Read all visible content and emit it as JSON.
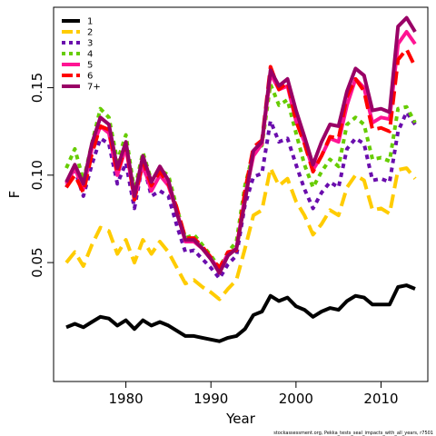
{
  "chart_data": {
    "type": "line",
    "xlabel": "Year",
    "ylabel": "F",
    "xlim": [
      1971.5,
      2015.5
    ],
    "ylim": [
      -0.018,
      0.196
    ],
    "x_ticks": [
      1980,
      1990,
      2000,
      2010
    ],
    "y_ticks": [
      0.05,
      0.1,
      0.15
    ],
    "y_tick_labels": [
      "0.05",
      "0.10",
      "0.15"
    ],
    "x": [
      1973,
      1974,
      1975,
      1976,
      1977,
      1978,
      1979,
      1980,
      1981,
      1982,
      1983,
      1984,
      1985,
      1986,
      1987,
      1988,
      1989,
      1990,
      1991,
      1992,
      1993,
      1994,
      1995,
      1996,
      1997,
      1998,
      1999,
      2000,
      2001,
      2002,
      2003,
      2004,
      2005,
      2006,
      2007,
      2008,
      2009,
      2010,
      2011,
      2012,
      2013,
      2014
    ],
    "legend_position": "top-left",
    "footnote": "stockassessment.org, Pekka_tests_seal_impacts_with_all_years, r7501",
    "series": [
      {
        "name": "1",
        "color": "#000000",
        "dash": "solid",
        "values": [
          0.013,
          0.015,
          0.013,
          0.016,
          0.019,
          0.018,
          0.014,
          0.017,
          0.012,
          0.017,
          0.014,
          0.016,
          0.014,
          0.011,
          0.008,
          0.008,
          0.007,
          0.006,
          0.005,
          0.007,
          0.008,
          0.012,
          0.02,
          0.022,
          0.031,
          0.028,
          0.03,
          0.025,
          0.023,
          0.019,
          0.022,
          0.024,
          0.023,
          0.028,
          0.031,
          0.03,
          0.026,
          0.026,
          0.026,
          0.036,
          0.037,
          0.035
        ]
      },
      {
        "name": "2",
        "color": "#FFCC00",
        "dash": "long",
        "values": [
          0.05,
          0.056,
          0.048,
          0.06,
          0.07,
          0.068,
          0.055,
          0.063,
          0.05,
          0.063,
          0.055,
          0.062,
          0.056,
          0.047,
          0.038,
          0.04,
          0.036,
          0.033,
          0.029,
          0.035,
          0.04,
          0.058,
          0.077,
          0.08,
          0.104,
          0.094,
          0.098,
          0.085,
          0.077,
          0.066,
          0.072,
          0.08,
          0.077,
          0.093,
          0.1,
          0.097,
          0.08,
          0.081,
          0.078,
          0.103,
          0.104,
          0.098
        ]
      },
      {
        "name": "3",
        "color": "#6A0DAD",
        "dash": "short",
        "values": [
          0.093,
          0.103,
          0.088,
          0.106,
          0.121,
          0.118,
          0.095,
          0.107,
          0.081,
          0.107,
          0.088,
          0.091,
          0.088,
          0.071,
          0.056,
          0.057,
          0.052,
          0.047,
          0.041,
          0.049,
          0.054,
          0.083,
          0.099,
          0.101,
          0.131,
          0.119,
          0.121,
          0.106,
          0.092,
          0.081,
          0.09,
          0.096,
          0.093,
          0.115,
          0.121,
          0.118,
          0.097,
          0.098,
          0.096,
          0.125,
          0.136,
          0.129
        ]
      },
      {
        "name": "4",
        "color": "#66CC00",
        "dash": "short",
        "values": [
          0.104,
          0.115,
          0.097,
          0.118,
          0.138,
          0.133,
          0.108,
          0.123,
          0.091,
          0.113,
          0.097,
          0.103,
          0.1,
          0.081,
          0.064,
          0.066,
          0.06,
          0.054,
          0.047,
          0.056,
          0.062,
          0.094,
          0.113,
          0.117,
          0.152,
          0.14,
          0.143,
          0.124,
          0.106,
          0.093,
          0.102,
          0.109,
          0.105,
          0.129,
          0.133,
          0.129,
          0.109,
          0.11,
          0.108,
          0.138,
          0.139,
          0.13
        ]
      },
      {
        "name": "5",
        "color": "#FF1493",
        "dash": "solid",
        "values": [
          0.095,
          0.104,
          0.092,
          0.115,
          0.128,
          0.124,
          0.1,
          0.116,
          0.086,
          0.106,
          0.091,
          0.1,
          0.094,
          0.079,
          0.062,
          0.062,
          0.058,
          0.052,
          0.046,
          0.055,
          0.058,
          0.088,
          0.111,
          0.118,
          0.158,
          0.149,
          0.151,
          0.131,
          0.119,
          0.103,
          0.111,
          0.121,
          0.119,
          0.14,
          0.155,
          0.15,
          0.13,
          0.133,
          0.132,
          0.175,
          0.182,
          0.175
        ]
      },
      {
        "name": "6",
        "color": "#FF0000",
        "dash": "long",
        "values": [
          0.093,
          0.1,
          0.09,
          0.112,
          0.128,
          0.126,
          0.101,
          0.118,
          0.086,
          0.108,
          0.094,
          0.102,
          0.095,
          0.081,
          0.064,
          0.064,
          0.059,
          0.053,
          0.047,
          0.056,
          0.057,
          0.091,
          0.116,
          0.12,
          0.162,
          0.149,
          0.153,
          0.131,
          0.118,
          0.102,
          0.111,
          0.122,
          0.121,
          0.145,
          0.155,
          0.148,
          0.126,
          0.127,
          0.125,
          0.166,
          0.172,
          0.162
        ]
      },
      {
        "name": "7+",
        "color": "#990066",
        "dash": "solid",
        "values": [
          0.096,
          0.106,
          0.095,
          0.118,
          0.133,
          0.129,
          0.104,
          0.119,
          0.088,
          0.111,
          0.096,
          0.105,
          0.097,
          0.078,
          0.063,
          0.063,
          0.058,
          0.052,
          0.044,
          0.054,
          0.058,
          0.085,
          0.114,
          0.119,
          0.16,
          0.151,
          0.155,
          0.137,
          0.122,
          0.106,
          0.119,
          0.129,
          0.128,
          0.148,
          0.161,
          0.157,
          0.137,
          0.138,
          0.136,
          0.185,
          0.19,
          0.182
        ]
      }
    ]
  }
}
